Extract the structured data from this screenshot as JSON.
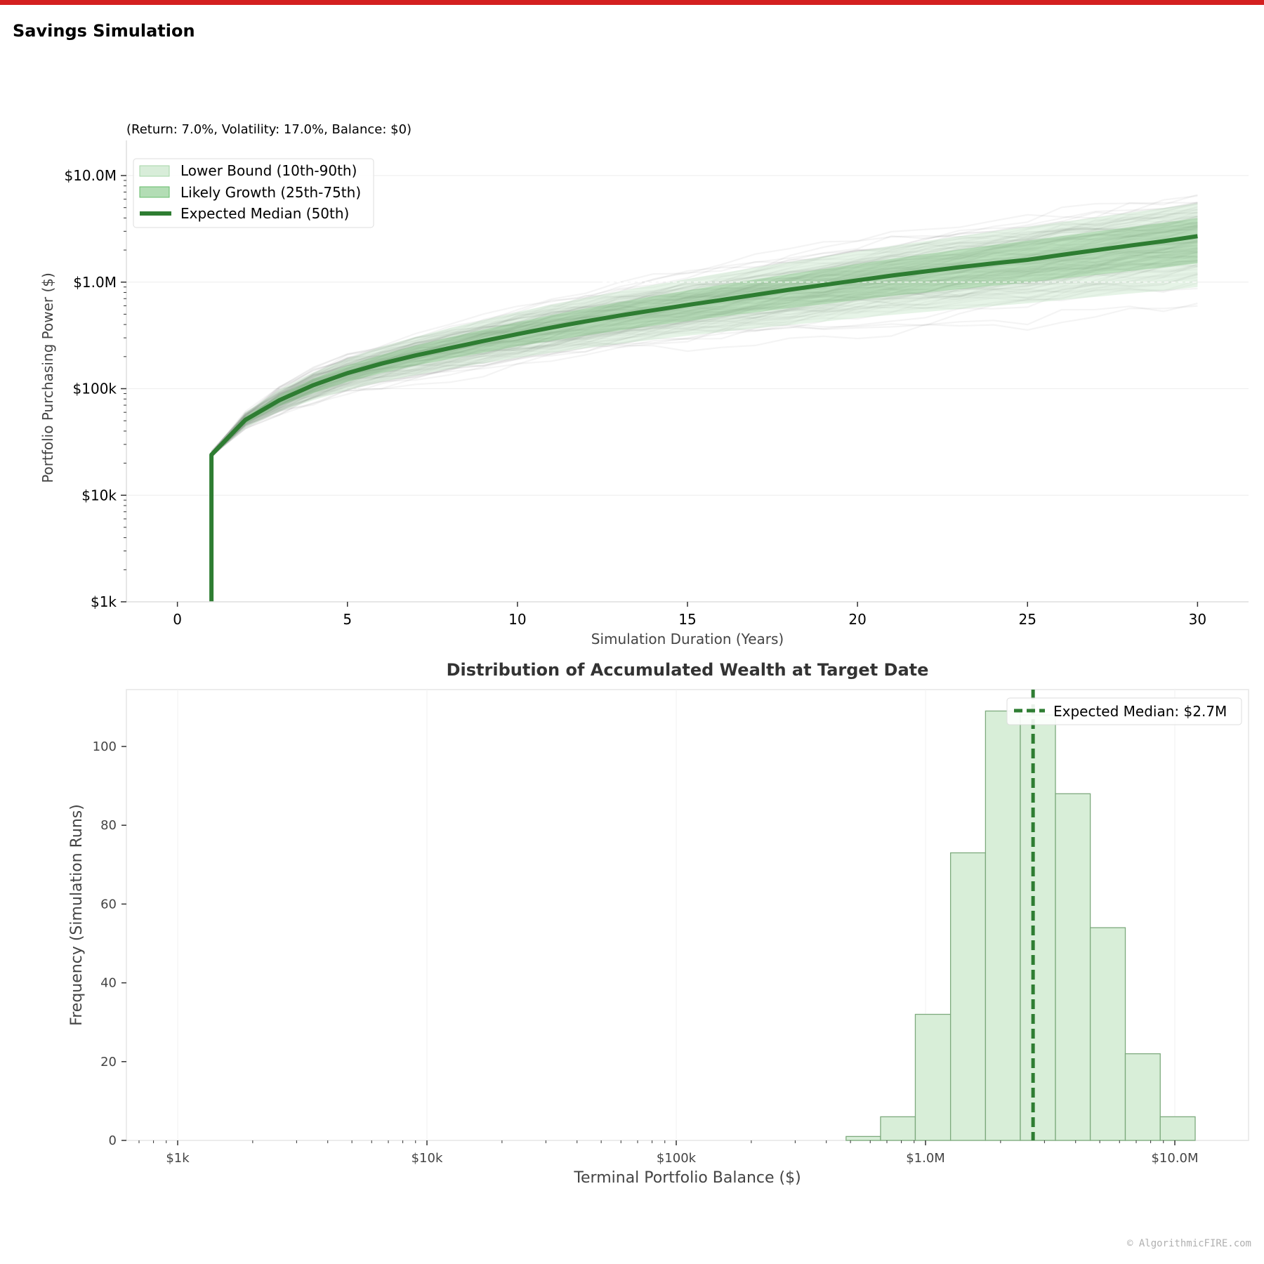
{
  "app": {
    "title": "Savings Simulation",
    "watermark": "© AlgorithmicFIRE.com"
  },
  "colors": {
    "accent_bar": "#d42020",
    "median_line": "#2e7d32",
    "band_outer": "#c8e6c9",
    "band_inner": "#81c784",
    "paths": "#333333",
    "hist_fill": "#d8eed8",
    "hist_edge": "#7daa7d"
  },
  "chart_data": [
    {
      "type": "line",
      "title": "",
      "subtitle": "(Return: 7.0%, Volatility: 17.0%, Balance: $0)",
      "xlabel": "Simulation Duration (Years)",
      "ylabel": "Portfolio Purchasing Power ($)",
      "xlim": [
        -1.5,
        31.5
      ],
      "ylim": [
        1000,
        15000000
      ],
      "yscale": "log",
      "xticks": [
        0,
        5,
        10,
        15,
        20,
        25,
        30
      ],
      "yticks": [
        {
          "value": 1000,
          "label": "$1k"
        },
        {
          "value": 10000,
          "label": "$10k"
        },
        {
          "value": 100000,
          "label": "$100k"
        },
        {
          "value": 1000000,
          "label": "$1.0M"
        },
        {
          "value": 10000000,
          "label": "$10.0M"
        }
      ],
      "grid": true,
      "legend_position": "top-left",
      "x": [
        1,
        2,
        3,
        4,
        5,
        6,
        7,
        8,
        9,
        10,
        11,
        12,
        13,
        14,
        15,
        16,
        17,
        18,
        19,
        20,
        21,
        22,
        23,
        24,
        25,
        26,
        27,
        28,
        29,
        30
      ],
      "series": [
        {
          "name": "Expected Median (50th)",
          "role": "median",
          "values": [
            24000,
            51000,
            78000,
            108000,
            140000,
            172000,
            205000,
            240000,
            280000,
            325000,
            375000,
            428000,
            485000,
            545000,
            610000,
            680000,
            760000,
            850000,
            940000,
            1040000,
            1150000,
            1260000,
            1380000,
            1500000,
            1620000,
            1800000,
            1990000,
            2200000,
            2420000,
            2700000
          ]
        },
        {
          "name": "Likely Growth (25th-75th)",
          "role": "band_inner",
          "lower": [
            23500,
            47000,
            69000,
            91000,
            116000,
            140000,
            165000,
            190000,
            218000,
            250000,
            282000,
            316000,
            352000,
            390000,
            430000,
            475000,
            520000,
            570000,
            620000,
            680000,
            740000,
            800000,
            860000,
            925000,
            990000,
            1080000,
            1170000,
            1270000,
            1370000,
            1500000
          ],
          "upper": [
            24500,
            55000,
            87000,
            124000,
            165000,
            208000,
            254000,
            303000,
            358000,
            420000,
            490000,
            565000,
            648000,
            738000,
            835000,
            945000,
            1060000,
            1190000,
            1330000,
            1480000,
            1650000,
            1830000,
            2020000,
            2230000,
            2450000,
            2700000,
            2980000,
            3280000,
            3600000,
            4000000
          ]
        },
        {
          "name": "Lower Bound (10th-90th)",
          "role": "band_outer",
          "lower": [
            23000,
            43000,
            61000,
            78000,
            97000,
            116000,
            134000,
            153000,
            173000,
            195000,
            217000,
            240000,
            264000,
            288000,
            314000,
            340000,
            368000,
            396000,
            426000,
            460000,
            492000,
            525000,
            560000,
            596000,
            632000,
            680000,
            728000,
            780000,
            832000,
            900000
          ],
          "upper": [
            25000,
            60000,
            98000,
            142000,
            192000,
            247000,
            306000,
            370000,
            442000,
            524000,
            615000,
            714000,
            822000,
            940000,
            1070000,
            1215000,
            1370000,
            1545000,
            1735000,
            1945000,
            2180000,
            2430000,
            2700000,
            3000000,
            3300000,
            3660000,
            4050000,
            4480000,
            4950000,
            5500000
          ]
        }
      ]
    },
    {
      "type": "bar",
      "title": "Distribution of Accumulated Wealth at Target Date",
      "xlabel": "Terminal Portfolio Balance ($)",
      "ylabel": "Frequency (Simulation Runs)",
      "xscale": "log",
      "xlim": [
        640,
        18000000
      ],
      "ylim": [
        0,
        115
      ],
      "xticks": [
        {
          "value": 1000,
          "label": "$1k"
        },
        {
          "value": 10000,
          "label": "$10k"
        },
        {
          "value": 100000,
          "label": "$100k"
        },
        {
          "value": 1000000,
          "label": "$1.0M"
        },
        {
          "value": 10000000,
          "label": "$10.0M"
        }
      ],
      "yticks": [
        0,
        20,
        40,
        60,
        80,
        100
      ],
      "legend_position": "top-right",
      "median": {
        "value": 2700000,
        "label": "Expected Median: $2.7M"
      },
      "bins": [
        {
          "from": 480000,
          "to": 660000,
          "count": 1
        },
        {
          "from": 660000,
          "to": 910000,
          "count": 6
        },
        {
          "from": 910000,
          "to": 1260000,
          "count": 32
        },
        {
          "from": 1260000,
          "to": 1740000,
          "count": 73
        },
        {
          "from": 1740000,
          "to": 2400000,
          "count": 109
        },
        {
          "from": 2400000,
          "to": 3320000,
          "count": 108
        },
        {
          "from": 3320000,
          "to": 4580000,
          "count": 88
        },
        {
          "from": 4580000,
          "to": 6330000,
          "count": 54
        },
        {
          "from": 6330000,
          "to": 8740000,
          "count": 22
        },
        {
          "from": 8740000,
          "to": 12070000,
          "count": 6
        }
      ]
    }
  ]
}
